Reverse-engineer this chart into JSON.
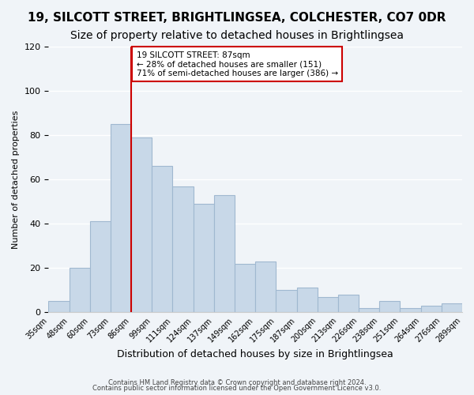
{
  "title": "19, SILCOTT STREET, BRIGHTLINGSEA, COLCHESTER, CO7 0DR",
  "subtitle": "Size of property relative to detached houses in Brightlingsea",
  "xlabel": "Distribution of detached houses by size in Brightlingsea",
  "ylabel": "Number of detached properties",
  "bar_labels": [
    "35sqm",
    "48sqm",
    "60sqm",
    "73sqm",
    "86sqm",
    "99sqm",
    "111sqm",
    "124sqm",
    "137sqm",
    "149sqm",
    "162sqm",
    "175sqm",
    "187sqm",
    "200sqm",
    "213sqm",
    "226sqm",
    "238sqm",
    "251sqm",
    "264sqm",
    "276sqm",
    "289sqm"
  ],
  "bar_values": [
    5,
    20,
    41,
    85,
    79,
    66,
    57,
    49,
    53,
    22,
    23,
    10,
    11,
    7,
    8,
    2,
    5,
    2,
    3,
    4
  ],
  "bar_color": "#c8d8e8",
  "bar_edge_color": "#a0b8d0",
  "highlight_x_label": "86sqm",
  "highlight_line_color": "#cc0000",
  "annotation_text": "19 SILCOTT STREET: 87sqm\n← 28% of detached houses are smaller (151)\n71% of semi-detached houses are larger (386) →",
  "annotation_box_edge": "#cc0000",
  "annotation_box_face": "#ffffff",
  "ylim": [
    0,
    120
  ],
  "yticks": [
    0,
    20,
    40,
    60,
    80,
    100,
    120
  ],
  "footer_line1": "Contains HM Land Registry data © Crown copyright and database right 2024.",
  "footer_line2": "Contains public sector information licensed under the Open Government Licence v3.0.",
  "background_color": "#f0f4f8",
  "grid_color": "#ffffff",
  "title_fontsize": 11,
  "subtitle_fontsize": 10
}
